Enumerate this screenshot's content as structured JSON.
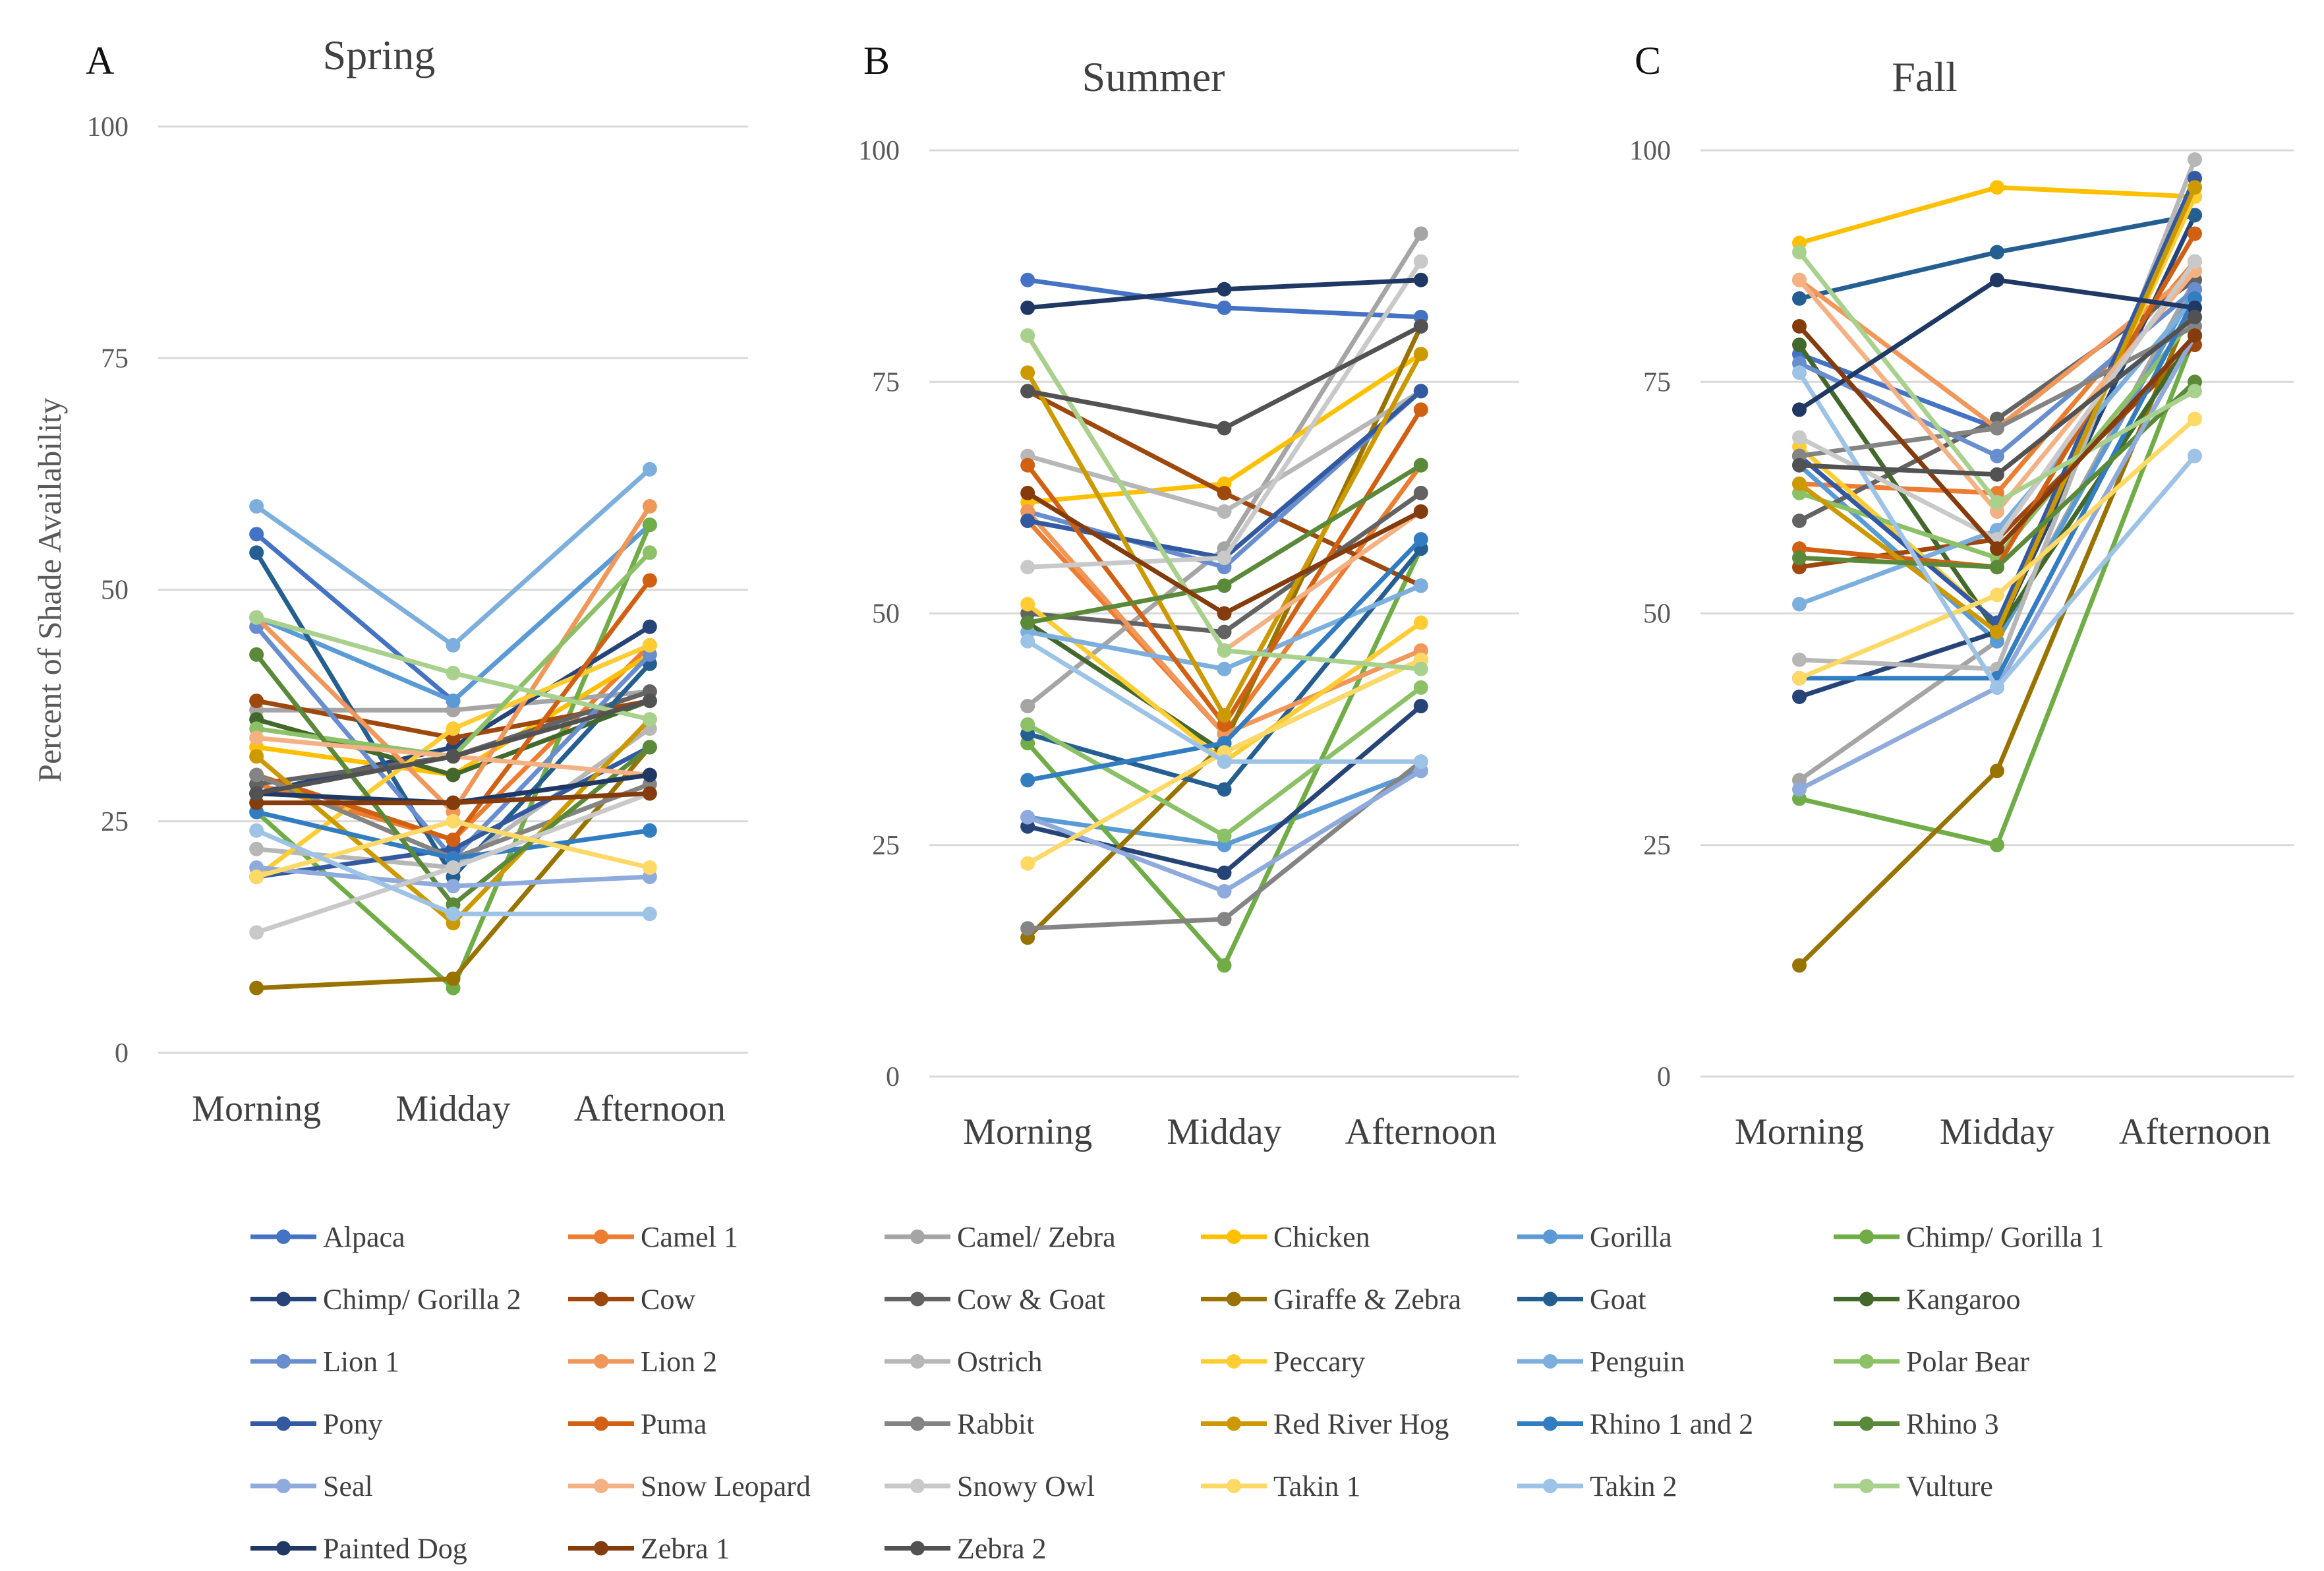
{
  "chart_data": [
    {
      "type": "line",
      "panel_letter": "A",
      "title": "Spring",
      "xlabel": "",
      "ylabel": "Percent of Shade Availability",
      "categories": [
        "Morning",
        "Midday",
        "Afternoon"
      ],
      "ylim": [
        0,
        100
      ],
      "yticks": [
        "0",
        "25",
        "50",
        "75",
        "100"
      ],
      "grid": true,
      "series": [
        {
          "name": "Alpaca",
          "values": [
            56,
            38,
            57
          ]
        },
        {
          "name": "Camel 1",
          "values": [
            29,
            23,
            44
          ]
        },
        {
          "name": "Camel/ Zebra",
          "values": [
            37,
            37,
            39
          ]
        },
        {
          "name": "Chicken",
          "values": [
            33,
            30,
            43
          ]
        },
        {
          "name": "Gorilla",
          "values": [
            47,
            38,
            57
          ]
        },
        {
          "name": "Chimp/ Gorilla 1",
          "values": [
            26,
            7,
            57
          ]
        },
        {
          "name": "Chimp/ Gorilla 2",
          "values": [
            28,
            33,
            46
          ]
        },
        {
          "name": "Cow",
          "values": [
            38,
            34,
            38
          ]
        },
        {
          "name": "Cow & Goat",
          "values": [
            29,
            32,
            39
          ]
        },
        {
          "name": "Giraffe & Zebra",
          "values": [
            7,
            8,
            33
          ]
        },
        {
          "name": "Goat",
          "values": [
            54,
            19,
            42
          ]
        },
        {
          "name": "Kangaroo",
          "values": [
            36,
            30,
            38
          ]
        },
        {
          "name": "Lion 1",
          "values": [
            46,
            21,
            43
          ]
        },
        {
          "name": "Lion 2",
          "values": [
            47,
            26,
            59
          ]
        },
        {
          "name": "Ostrich",
          "values": [
            22,
            20,
            35
          ]
        },
        {
          "name": "Peccary",
          "values": [
            19,
            35,
            44
          ]
        },
        {
          "name": "Penguin",
          "values": [
            59,
            44,
            63
          ]
        },
        {
          "name": "Polar Bear",
          "values": [
            35,
            32,
            54
          ]
        },
        {
          "name": "Pony",
          "values": [
            19,
            22,
            33
          ]
        },
        {
          "name": "Puma",
          "values": [
            30,
            23,
            51
          ]
        },
        {
          "name": "Rabbit",
          "values": [
            30,
            21,
            29
          ]
        },
        {
          "name": "Red River Hog",
          "values": [
            32,
            14,
            36
          ]
        },
        {
          "name": "Rhino 1 and 2",
          "values": [
            26,
            21,
            24
          ]
        },
        {
          "name": "Rhino 3",
          "values": [
            43,
            16,
            33
          ]
        },
        {
          "name": "Seal",
          "values": [
            20,
            18,
            19
          ]
        },
        {
          "name": "Snow Leopard",
          "values": [
            34,
            32,
            30
          ]
        },
        {
          "name": "Snowy Owl",
          "values": [
            13,
            20,
            28
          ]
        },
        {
          "name": "Takin 1",
          "values": [
            19,
            25,
            20
          ]
        },
        {
          "name": "Takin 2",
          "values": [
            24,
            15,
            15
          ]
        },
        {
          "name": "Vulture",
          "values": [
            47,
            41,
            36
          ]
        },
        {
          "name": "Painted Dog",
          "values": [
            28,
            27,
            30
          ]
        },
        {
          "name": "Zebra 1",
          "values": [
            27,
            27,
            28
          ]
        },
        {
          "name": "Zebra 2",
          "values": [
            28,
            32,
            38
          ]
        }
      ]
    },
    {
      "type": "line",
      "panel_letter": "B",
      "title": "Summer",
      "xlabel": "",
      "ylabel": "",
      "categories": [
        "Morning",
        "Midday",
        "Afternoon"
      ],
      "ylim": [
        0,
        100
      ],
      "yticks": [
        "0",
        "25",
        "50",
        "75",
        "100"
      ],
      "grid": true,
      "series": [
        {
          "name": "Alpaca",
          "values": [
            86,
            83,
            82
          ]
        },
        {
          "name": "Camel 1",
          "values": [
            60,
            37,
            66
          ]
        },
        {
          "name": "Camel/ Zebra",
          "values": [
            40,
            57,
            91
          ]
        },
        {
          "name": "Chicken",
          "values": [
            62,
            64,
            78
          ]
        },
        {
          "name": "Gorilla",
          "values": [
            28,
            25,
            33
          ]
        },
        {
          "name": "Chimp/ Gorilla 1",
          "values": [
            36,
            12,
            57
          ]
        },
        {
          "name": "Chimp/ Gorilla 2",
          "values": [
            27,
            22,
            40
          ]
        },
        {
          "name": "Cow",
          "values": [
            74,
            63,
            53
          ]
        },
        {
          "name": "Cow & Goat",
          "values": [
            50,
            48,
            63
          ]
        },
        {
          "name": "Giraffe & Zebra",
          "values": [
            15,
            36,
            81
          ]
        },
        {
          "name": "Goat",
          "values": [
            37,
            31,
            57
          ]
        },
        {
          "name": "Kangaroo",
          "values": [
            49,
            35,
            45
          ]
        },
        {
          "name": "Lion 1",
          "values": [
            61,
            55,
            74
          ]
        },
        {
          "name": "Lion 2",
          "values": [
            61,
            37,
            46
          ]
        },
        {
          "name": "Ostrich",
          "values": [
            67,
            61,
            74
          ]
        },
        {
          "name": "Peccary",
          "values": [
            51,
            34,
            49
          ]
        },
        {
          "name": "Penguin",
          "values": [
            48,
            44,
            53
          ]
        },
        {
          "name": "Polar Bear",
          "values": [
            38,
            26,
            42
          ]
        },
        {
          "name": "Pony",
          "values": [
            60,
            56,
            74
          ]
        },
        {
          "name": "Puma",
          "values": [
            66,
            38,
            72
          ]
        },
        {
          "name": "Rabbit",
          "values": [
            16,
            17,
            34
          ]
        },
        {
          "name": "Red River Hog",
          "values": [
            76,
            39,
            78
          ]
        },
        {
          "name": "Rhino 1 and 2",
          "values": [
            32,
            36,
            58
          ]
        },
        {
          "name": "Rhino 3",
          "values": [
            49,
            53,
            66
          ]
        },
        {
          "name": "Seal",
          "values": [
            28,
            20,
            33
          ]
        },
        {
          "name": "Snow Leopard",
          "values": [
            80,
            46,
            61
          ]
        },
        {
          "name": "Snowy Owl",
          "values": [
            55,
            56,
            88
          ]
        },
        {
          "name": "Takin 1",
          "values": [
            23,
            35,
            45
          ]
        },
        {
          "name": "Takin 2",
          "values": [
            47,
            34,
            34
          ]
        },
        {
          "name": "Vulture",
          "values": [
            80,
            46,
            44
          ]
        },
        {
          "name": "Painted Dog",
          "values": [
            83,
            85,
            86
          ]
        },
        {
          "name": "Zebra 1",
          "values": [
            63,
            50,
            61
          ]
        },
        {
          "name": "Zebra 2",
          "values": [
            74,
            70,
            81
          ]
        }
      ]
    },
    {
      "type": "line",
      "panel_letter": "C",
      "title": "Fall",
      "xlabel": "",
      "ylabel": "",
      "categories": [
        "Morning",
        "Midday",
        "Afternoon"
      ],
      "ylim": [
        0,
        100
      ],
      "yticks": [
        "0",
        "25",
        "50",
        "75",
        "100"
      ],
      "grid": true,
      "series": [
        {
          "name": "Alpaca",
          "values": [
            78,
            70,
            87
          ]
        },
        {
          "name": "Camel 1",
          "values": [
            64,
            63,
            88
          ]
        },
        {
          "name": "Camel/ Zebra",
          "values": [
            32,
            47,
            86
          ]
        },
        {
          "name": "Chicken",
          "values": [
            90,
            96,
            95
          ]
        },
        {
          "name": "Gorilla",
          "values": [
            66,
            47,
            85
          ]
        },
        {
          "name": "Chimp/ Gorilla 1",
          "values": [
            30,
            25,
            80
          ]
        },
        {
          "name": "Chimp/ Gorilla 2",
          "values": [
            41,
            48,
            93
          ]
        },
        {
          "name": "Cow",
          "values": [
            55,
            58,
            79
          ]
        },
        {
          "name": "Cow & Goat",
          "values": [
            60,
            71,
            86
          ]
        },
        {
          "name": "Giraffe & Zebra",
          "values": [
            12,
            33,
            84
          ]
        },
        {
          "name": "Goat",
          "values": [
            84,
            89,
            93
          ]
        },
        {
          "name": "Kangaroo",
          "values": [
            79,
            48,
            80
          ]
        },
        {
          "name": "Lion 1",
          "values": [
            77,
            67,
            85
          ]
        },
        {
          "name": "Lion 2",
          "values": [
            86,
            70,
            87
          ]
        },
        {
          "name": "Ostrich",
          "values": [
            45,
            44,
            99
          ]
        },
        {
          "name": "Peccary",
          "values": [
            68,
            49,
            95
          ]
        },
        {
          "name": "Penguin",
          "values": [
            51,
            59,
            84
          ]
        },
        {
          "name": "Polar Bear",
          "values": [
            63,
            56,
            82
          ]
        },
        {
          "name": "Pony",
          "values": [
            67,
            49,
            97
          ]
        },
        {
          "name": "Puma",
          "values": [
            57,
            55,
            91
          ]
        },
        {
          "name": "Rabbit",
          "values": [
            67,
            70,
            81
          ]
        },
        {
          "name": "Red River Hog",
          "values": [
            64,
            48,
            96
          ]
        },
        {
          "name": "Rhino 1 and 2",
          "values": [
            43,
            43,
            84
          ]
        },
        {
          "name": "Rhino 3",
          "values": [
            56,
            55,
            75
          ]
        },
        {
          "name": "Seal",
          "values": [
            31,
            42,
            80
          ]
        },
        {
          "name": "Snow Leopard",
          "values": [
            86,
            61,
            87
          ]
        },
        {
          "name": "Snowy Owl",
          "values": [
            69,
            58,
            88
          ]
        },
        {
          "name": "Takin 1",
          "values": [
            43,
            52,
            71
          ]
        },
        {
          "name": "Takin 2",
          "values": [
            76,
            42,
            67
          ]
        },
        {
          "name": "Vulture",
          "values": [
            89,
            62,
            74
          ]
        },
        {
          "name": "Painted Dog",
          "values": [
            72,
            86,
            83
          ]
        },
        {
          "name": "Zebra 1",
          "values": [
            81,
            57,
            80
          ]
        },
        {
          "name": "Zebra 2",
          "values": [
            66,
            65,
            82
          ]
        }
      ]
    }
  ],
  "legend": [
    {
      "name": "Alpaca",
      "color": "#4472C4"
    },
    {
      "name": "Camel 1",
      "color": "#ED7D31"
    },
    {
      "name": "Camel/ Zebra",
      "color": "#A5A5A5"
    },
    {
      "name": "Chicken",
      "color": "#FFC000"
    },
    {
      "name": "Gorilla",
      "color": "#5B9BD5"
    },
    {
      "name": "Chimp/ Gorilla 1",
      "color": "#70AD47"
    },
    {
      "name": "Chimp/ Gorilla 2",
      "color": "#264478"
    },
    {
      "name": "Cow",
      "color": "#9E480E"
    },
    {
      "name": "Cow & Goat",
      "color": "#636363"
    },
    {
      "name": "Giraffe & Zebra",
      "color": "#997300"
    },
    {
      "name": "Goat",
      "color": "#255E91"
    },
    {
      "name": "Kangaroo",
      "color": "#43682B"
    },
    {
      "name": "Lion 1",
      "color": "#698ED0"
    },
    {
      "name": "Lion 2",
      "color": "#F1975A"
    },
    {
      "name": "Ostrich",
      "color": "#B7B7B7"
    },
    {
      "name": "Peccary",
      "color": "#FFCD33"
    },
    {
      "name": "Penguin",
      "color": "#7CAFDD"
    },
    {
      "name": "Polar Bear",
      "color": "#8CC168"
    },
    {
      "name": "Pony",
      "color": "#335AA1"
    },
    {
      "name": "Puma",
      "color": "#D26012"
    },
    {
      "name": "Rabbit",
      "color": "#848484"
    },
    {
      "name": "Red River Hog",
      "color": "#CC9A00"
    },
    {
      "name": "Rhino 1 and 2",
      "color": "#327DC2"
    },
    {
      "name": "Rhino 3",
      "color": "#5A8A39"
    },
    {
      "name": "Seal",
      "color": "#8FAADC"
    },
    {
      "name": "Snow Leopard",
      "color": "#F4B183"
    },
    {
      "name": "Snowy Owl",
      "color": "#C9C9C9"
    },
    {
      "name": "Takin 1",
      "color": "#FFD966"
    },
    {
      "name": "Takin 2",
      "color": "#9DC3E6"
    },
    {
      "name": "Vulture",
      "color": "#A9D18E"
    },
    {
      "name": "Painted Dog",
      "color": "#1F3864"
    },
    {
      "name": "Zebra 1",
      "color": "#843C0C"
    },
    {
      "name": "Zebra 2",
      "color": "#525252"
    }
  ]
}
